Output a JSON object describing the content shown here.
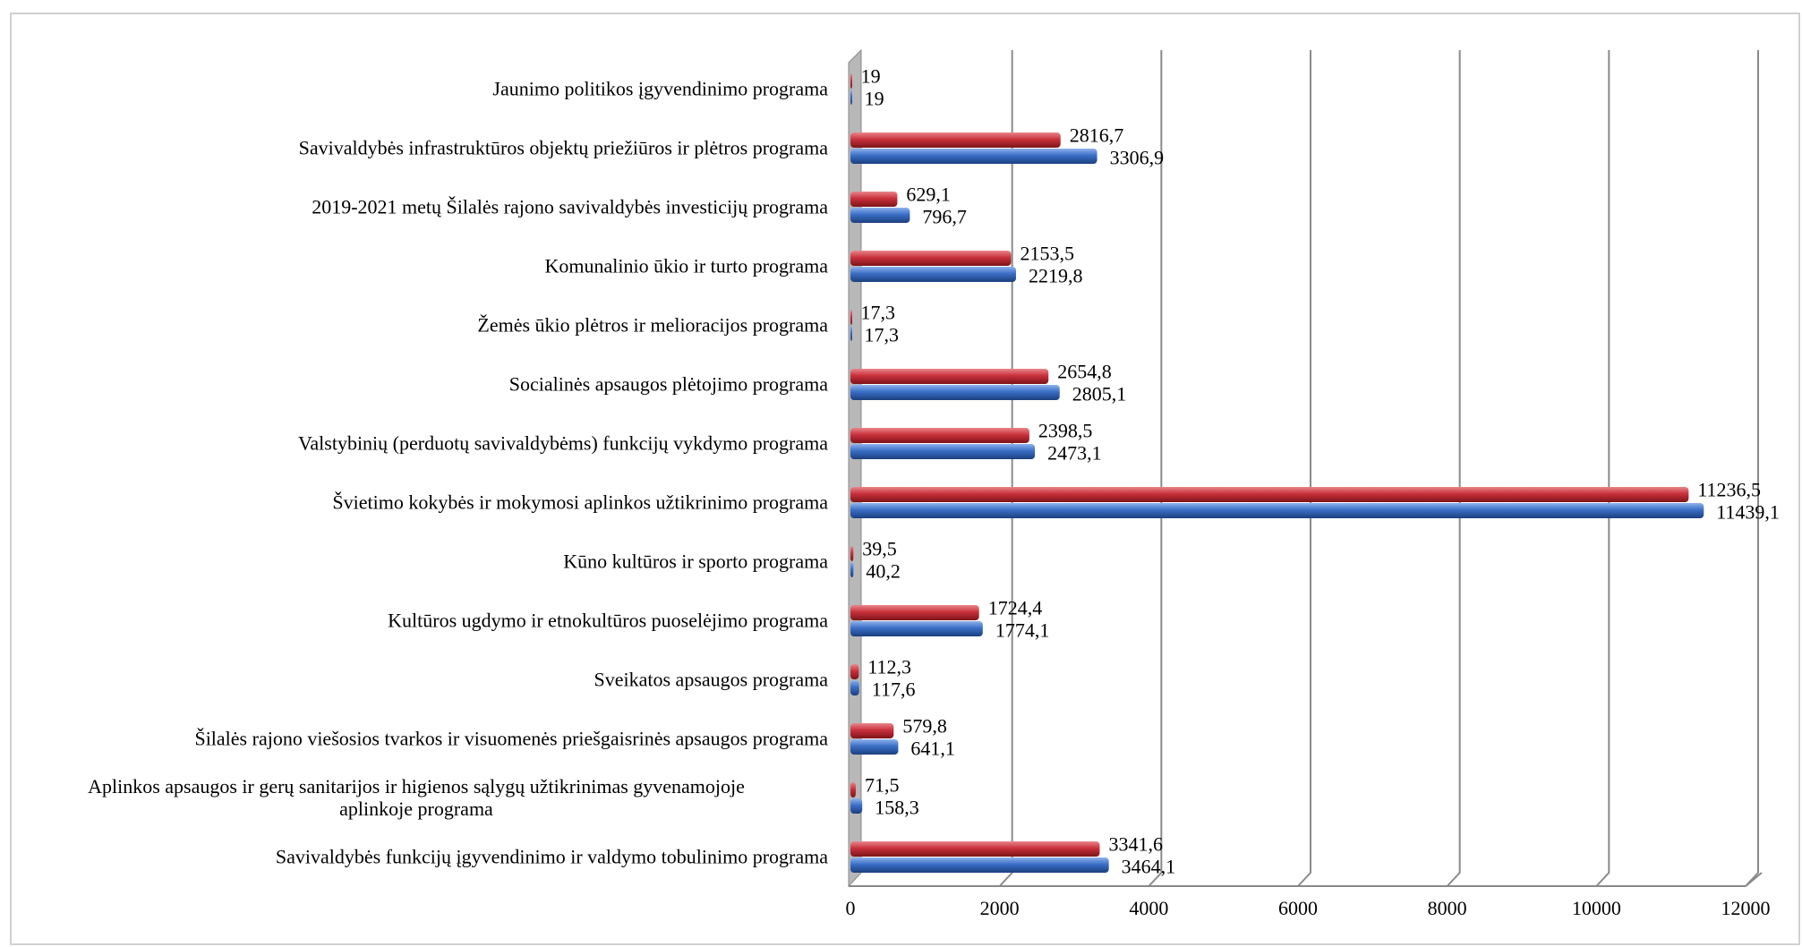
{
  "chart_data": {
    "type": "bar",
    "orientation": "horizontal",
    "categories": [
      "Jaunimo politikos įgyvendinimo programa",
      "Savivaldybės infrastruktūros objektų priežiūros ir plėtros programa",
      "2019-2021 metų Šilalės rajono savivaldybės investicijų programa",
      "Komunalinio ūkio ir turto programa",
      "Žemės ūkio plėtros ir melioracijos programa",
      "Socialinės apsaugos plėtojimo programa",
      "Valstybinių (perduotų savivaldybėms) funkcijų vykdymo programa",
      "Švietimo kokybės ir mokymosi aplinkos užtikrinimo programa",
      "Kūno kultūros ir sporto programa",
      "Kultūros ugdymo ir etnokultūros puoselėjimo programa",
      "Sveikatos apsaugos programa",
      "Šilalės rajono viešosios tvarkos ir visuomenės priešgaisrinės apsaugos programa",
      "Aplinkos apsaugos ir gerų sanitarijos ir higienos sąlygų užtikrinimas gyvenamojoje\naplinkoje programa",
      "Savivaldybės funkcijų įgyvendinimo ir valdymo tobulinimo programa"
    ],
    "series": [
      {
        "color": "#c9313b",
        "values": [
          19,
          2816.7,
          629.1,
          2153.5,
          17.3,
          2654.8,
          2398.5,
          11236.5,
          39.5,
          1724.4,
          112.3,
          579.8,
          71.5,
          3341.6
        ],
        "value_labels": [
          "19",
          "2816,7",
          "629,1",
          "2153,5",
          "17,3",
          "2654,8",
          "2398,5",
          "11236,5",
          "39,5",
          "1724,4",
          "112,3",
          "579,8",
          "71,5",
          "3341,6"
        ]
      },
      {
        "color": "#3a6fc6",
        "values": [
          19,
          3306.9,
          796.7,
          2219.8,
          17.3,
          2805.1,
          2473.1,
          11439.1,
          40.2,
          1774.1,
          117.6,
          641.1,
          158.3,
          3464.1
        ],
        "value_labels": [
          "19",
          "3306,9",
          "796,7",
          "2219,8",
          "17,3",
          "2805,1",
          "2473,1",
          "11439,1",
          "40,2",
          "1774,1",
          "117,6",
          "641,1",
          "158,3",
          "3464,1"
        ]
      }
    ],
    "xlim": [
      0,
      12000
    ],
    "xticks": [
      0,
      2000,
      4000,
      6000,
      8000,
      10000,
      12000
    ],
    "grid": true
  }
}
